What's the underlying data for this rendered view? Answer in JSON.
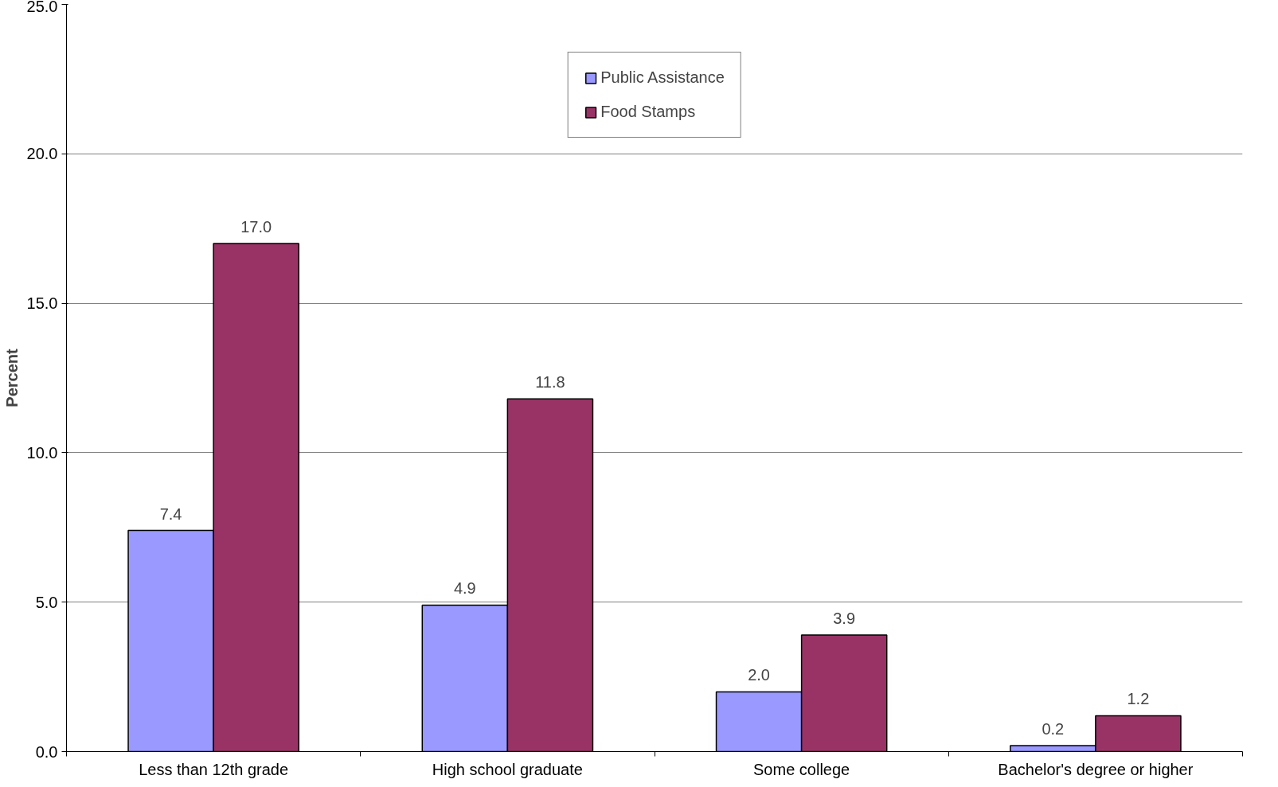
{
  "chart_data": {
    "type": "bar",
    "ylabel": "Percent",
    "categories": [
      "Less than 12th grade",
      "High school graduate",
      "Some college",
      "Bachelor's degree or higher"
    ],
    "series": [
      {
        "name": "Public Assistance",
        "color": "#9999ff",
        "values": [
          7.4,
          4.9,
          2.0,
          0.2
        ],
        "value_labels": [
          "7.4",
          "4.9",
          "2.0",
          "0.2"
        ]
      },
      {
        "name": "Food Stamps",
        "color": "#993366",
        "values": [
          17.0,
          11.8,
          3.9,
          1.2
        ],
        "value_labels": [
          "17.0",
          "11.8",
          "3.9",
          "1.2"
        ]
      }
    ],
    "ylim": [
      0,
      25
    ],
    "yticks": [
      {
        "value": 0,
        "label": "0.0"
      },
      {
        "value": 5,
        "label": "5.0"
      },
      {
        "value": 10,
        "label": "10.0"
      },
      {
        "value": 15,
        "label": "15.0"
      },
      {
        "value": 20,
        "label": "20.0"
      },
      {
        "value": 25,
        "label": "25.0"
      }
    ],
    "grid": "y",
    "legend": "top"
  }
}
